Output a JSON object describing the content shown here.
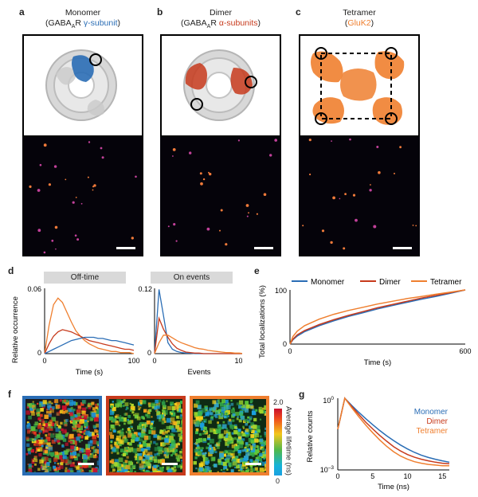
{
  "panels": {
    "a": {
      "letter": "a",
      "title_line1": "Monomer",
      "title_line2_pre": "(GABA",
      "title_sub": "A",
      "title_line2_mid": "R ",
      "title_accent": "γ-subunit",
      "title_line2_post": ")"
    },
    "b": {
      "letter": "b",
      "title_line1": "Dimer",
      "title_line2_pre": "(GABA",
      "title_sub": "A",
      "title_line2_mid": "R ",
      "title_accent": "α-subunits",
      "title_line2_post": ")"
    },
    "c": {
      "letter": "c",
      "title_line1": "Tetramer",
      "title_line2_pre": "(",
      "title_accent": "GluK2",
      "title_line2_post": ")"
    },
    "d": {
      "letter": "d"
    },
    "e": {
      "letter": "e"
    },
    "f": {
      "letter": "f"
    },
    "g": {
      "letter": "g"
    }
  },
  "colors": {
    "monomer": "#2a6db5",
    "dimer": "#c73a1c",
    "tetramer": "#ef7f2f",
    "gabaa_gamma": "#2a6db5",
    "gabaa_alpha": "#c73a1c",
    "gluk2": "#ef7f2f"
  },
  "chart_data": [
    {
      "type": "line",
      "id": "d-offtime",
      "title": "Off-time",
      "xlabel": "Time (s)",
      "ylabel": "Relative occurrence",
      "xlim": [
        0,
        100
      ],
      "ylim": [
        0,
        0.06
      ],
      "xticks": [
        "0",
        "100"
      ],
      "yticks": [
        "0",
        "0.06"
      ],
      "x": [
        0,
        5,
        10,
        15,
        20,
        25,
        30,
        35,
        40,
        45,
        50,
        55,
        60,
        65,
        70,
        75,
        80,
        85,
        90,
        95,
        100
      ],
      "series": [
        {
          "color": "tetramer",
          "values": [
            0,
            0.026,
            0.045,
            0.051,
            0.047,
            0.038,
            0.029,
            0.021,
            0.016,
            0.012,
            0.009,
            0.007,
            0.005,
            0.004,
            0.003,
            0.002,
            0.002,
            0.001,
            0.001,
            0.001,
            0
          ]
        },
        {
          "color": "dimer",
          "values": [
            0,
            0.009,
            0.016,
            0.02,
            0.022,
            0.021,
            0.02,
            0.018,
            0.016,
            0.014,
            0.012,
            0.011,
            0.01,
            0.009,
            0.008,
            0.007,
            0.006,
            0.005,
            0.004,
            0.004,
            0.003
          ]
        },
        {
          "color": "monomer",
          "values": [
            0,
            0.002,
            0.004,
            0.006,
            0.008,
            0.01,
            0.012,
            0.013,
            0.014,
            0.015,
            0.015,
            0.015,
            0.014,
            0.014,
            0.013,
            0.012,
            0.012,
            0.011,
            0.01,
            0.009,
            0.008
          ]
        }
      ]
    },
    {
      "type": "line",
      "id": "d-onevents",
      "title": "On events",
      "xlabel": "Events",
      "ylabel": "",
      "xlim": [
        0,
        100
      ],
      "ylim": [
        0,
        0.12
      ],
      "xticks": [
        "0",
        "100"
      ],
      "yticks": [
        "0",
        "0.12"
      ],
      "x": [
        0,
        5,
        10,
        15,
        20,
        25,
        30,
        35,
        40,
        45,
        50,
        55,
        60,
        65,
        70,
        75,
        80,
        85,
        90,
        95,
        100
      ],
      "series": [
        {
          "color": "monomer",
          "values": [
            0,
            0.118,
            0.07,
            0.02,
            0.008,
            0.004,
            0.002,
            0.001,
            0.001,
            0,
            0,
            0,
            0,
            0,
            0,
            0,
            0,
            0,
            0,
            0,
            0
          ]
        },
        {
          "color": "dimer",
          "values": [
            0,
            0.065,
            0.045,
            0.03,
            0.018,
            0.01,
            0.006,
            0.003,
            0.002,
            0.001,
            0.001,
            0,
            0,
            0,
            0,
            0,
            0,
            0,
            0,
            0,
            0
          ]
        },
        {
          "color": "tetramer",
          "values": [
            0,
            0.02,
            0.034,
            0.034,
            0.029,
            0.024,
            0.02,
            0.017,
            0.014,
            0.011,
            0.009,
            0.008,
            0.006,
            0.005,
            0.004,
            0.003,
            0.002,
            0.002,
            0.001,
            0.001,
            0
          ]
        }
      ]
    },
    {
      "type": "line",
      "id": "e",
      "title": "",
      "xlabel": "Time (s)",
      "ylabel": "Total localizations (%)",
      "xlim": [
        0,
        600
      ],
      "ylim": [
        0,
        100
      ],
      "xticks": [
        "0",
        "600"
      ],
      "yticks": [
        "0",
        "100"
      ],
      "legend": "top",
      "x": [
        0,
        10,
        25,
        50,
        100,
        150,
        200,
        250,
        300,
        350,
        400,
        450,
        500,
        550,
        600
      ],
      "series": [
        {
          "name": "Monomer",
          "color": "monomer",
          "values": [
            0,
            8,
            15,
            23,
            34,
            43,
            51,
            58,
            65,
            71,
            77,
            83,
            88,
            94,
            100
          ]
        },
        {
          "name": "Dimer",
          "color": "dimer",
          "values": [
            0,
            9,
            17,
            25,
            36,
            45,
            53,
            60,
            67,
            73,
            79,
            85,
            90,
            95,
            100
          ]
        },
        {
          "name": "Tetramer",
          "color": "tetramer",
          "values": [
            0,
            14,
            24,
            34,
            46,
            55,
            62,
            68,
            74,
            79,
            84,
            88,
            92,
            96,
            100
          ]
        }
      ]
    },
    {
      "type": "line",
      "id": "g",
      "title": "",
      "xlabel": "Time (ns)",
      "ylabel": "Relative counts",
      "xlim": [
        0,
        16
      ],
      "ylim": [
        0.001,
        1
      ],
      "yscale": "log",
      "xticks": [
        "0",
        "5",
        "10",
        "15"
      ],
      "yticks": [
        "10^0",
        "10^-3"
      ],
      "legend": "top-right",
      "x": [
        0,
        1,
        2,
        3,
        4,
        5,
        6,
        7,
        8,
        9,
        10,
        11,
        12,
        13,
        14,
        15,
        16
      ],
      "series": [
        {
          "name": "Monomer",
          "color": "monomer",
          "values": [
            0.05,
            1,
            0.5,
            0.26,
            0.14,
            0.078,
            0.045,
            0.027,
            0.017,
            0.011,
            0.0075,
            0.0054,
            0.0041,
            0.0033,
            0.0028,
            0.0024,
            0.0021
          ]
        },
        {
          "name": "Dimer",
          "color": "dimer",
          "values": [
            0.05,
            1,
            0.45,
            0.21,
            0.1,
            0.052,
            0.028,
            0.016,
            0.0095,
            0.0062,
            0.0044,
            0.0034,
            0.0028,
            0.0024,
            0.0021,
            0.0019,
            0.0018
          ]
        },
        {
          "name": "Tetramer",
          "color": "tetramer",
          "values": [
            0.05,
            1,
            0.4,
            0.17,
            0.076,
            0.036,
            0.018,
            0.0098,
            0.0058,
            0.0038,
            0.0028,
            0.0022,
            0.0019,
            0.0017,
            0.0016,
            0.0015,
            0.0015
          ]
        }
      ]
    }
  ],
  "colorbar": {
    "label": "Average lifetime (ns)",
    "max": "2.0",
    "min": "0"
  }
}
